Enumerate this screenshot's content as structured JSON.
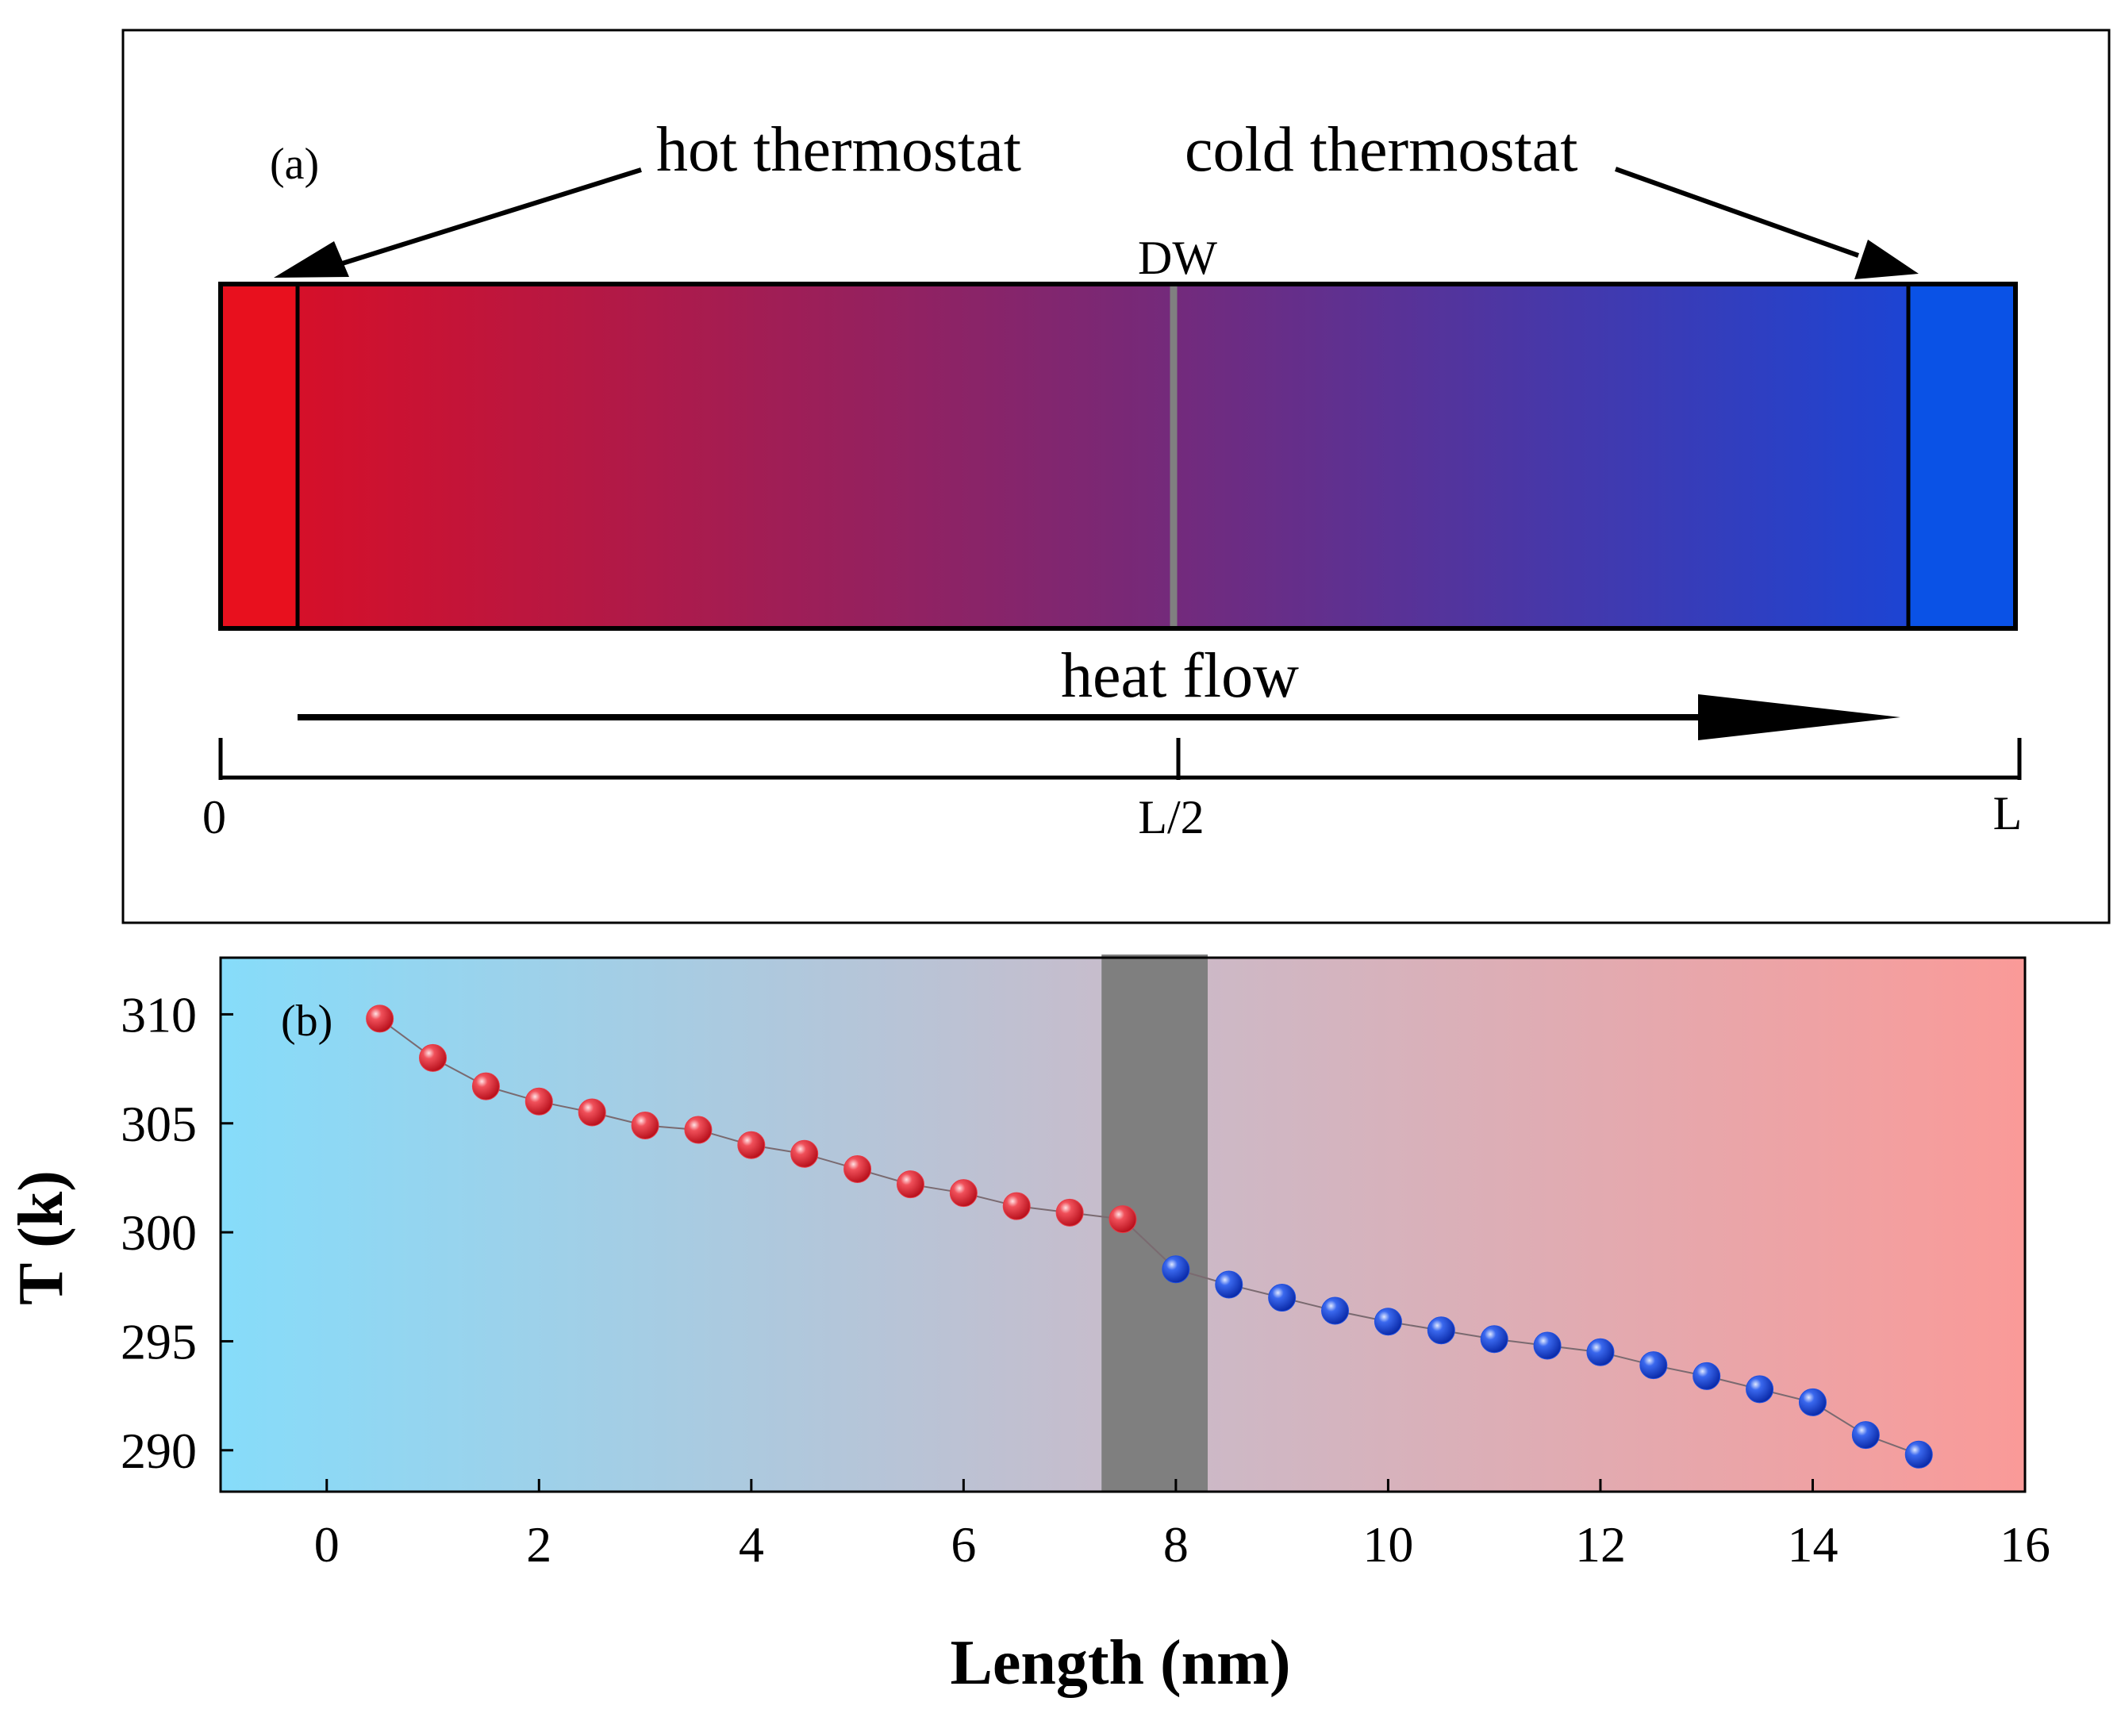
{
  "panel_a": {
    "panel_label": "(a)",
    "hot_label": "hot thermostat",
    "cold_label": "cold thermostat",
    "dw_label": "DW",
    "flow_label": "heat flow",
    "scale_labels": [
      "0",
      "L/2",
      "L"
    ],
    "colors": {
      "hot": "#e8101e",
      "cold": "#0a52e6",
      "mid": "#7a2875",
      "dw_line": "#808080"
    }
  },
  "chart_data": {
    "type": "scatter",
    "panel_label": "(b)",
    "xlabel": "Length (nm)",
    "ylabel": "T (k)",
    "xlim": [
      -1,
      16
    ],
    "ylim": [
      288.1,
      312.6
    ],
    "xticks": [
      0,
      2,
      4,
      6,
      8,
      10,
      12,
      14,
      16
    ],
    "yticks": [
      290,
      295,
      300,
      305,
      310
    ],
    "shaded_region": {
      "x": [
        7.3,
        8.3
      ],
      "color": "#7f7f7f"
    },
    "background_gradient": [
      "#86dcfa",
      "#fa9a98"
    ],
    "series": [
      {
        "color": "#e83a45",
        "x": [
          0.5,
          1.0,
          1.5,
          2.0,
          2.5,
          3.0,
          3.5,
          4.0,
          4.5,
          5.0,
          5.5,
          6.0,
          6.5,
          7.0,
          7.5
        ],
        "y": [
          309.8,
          308.0,
          306.7,
          306.0,
          305.5,
          304.9,
          304.7,
          304.0,
          303.6,
          302.9,
          302.2,
          301.8,
          301.2,
          300.9,
          300.6
        ]
      },
      {
        "color": "#1f4fe0",
        "x": [
          8.0,
          8.5,
          9.0,
          9.5,
          10.0,
          10.5,
          11.0,
          11.5,
          12.0,
          12.5,
          13.0,
          13.5,
          14.0,
          14.5,
          15.0
        ],
        "y": [
          298.3,
          297.6,
          297.0,
          296.4,
          295.9,
          295.5,
          295.1,
          294.8,
          294.5,
          293.9,
          293.4,
          292.8,
          292.2,
          290.7,
          289.8
        ]
      }
    ]
  }
}
